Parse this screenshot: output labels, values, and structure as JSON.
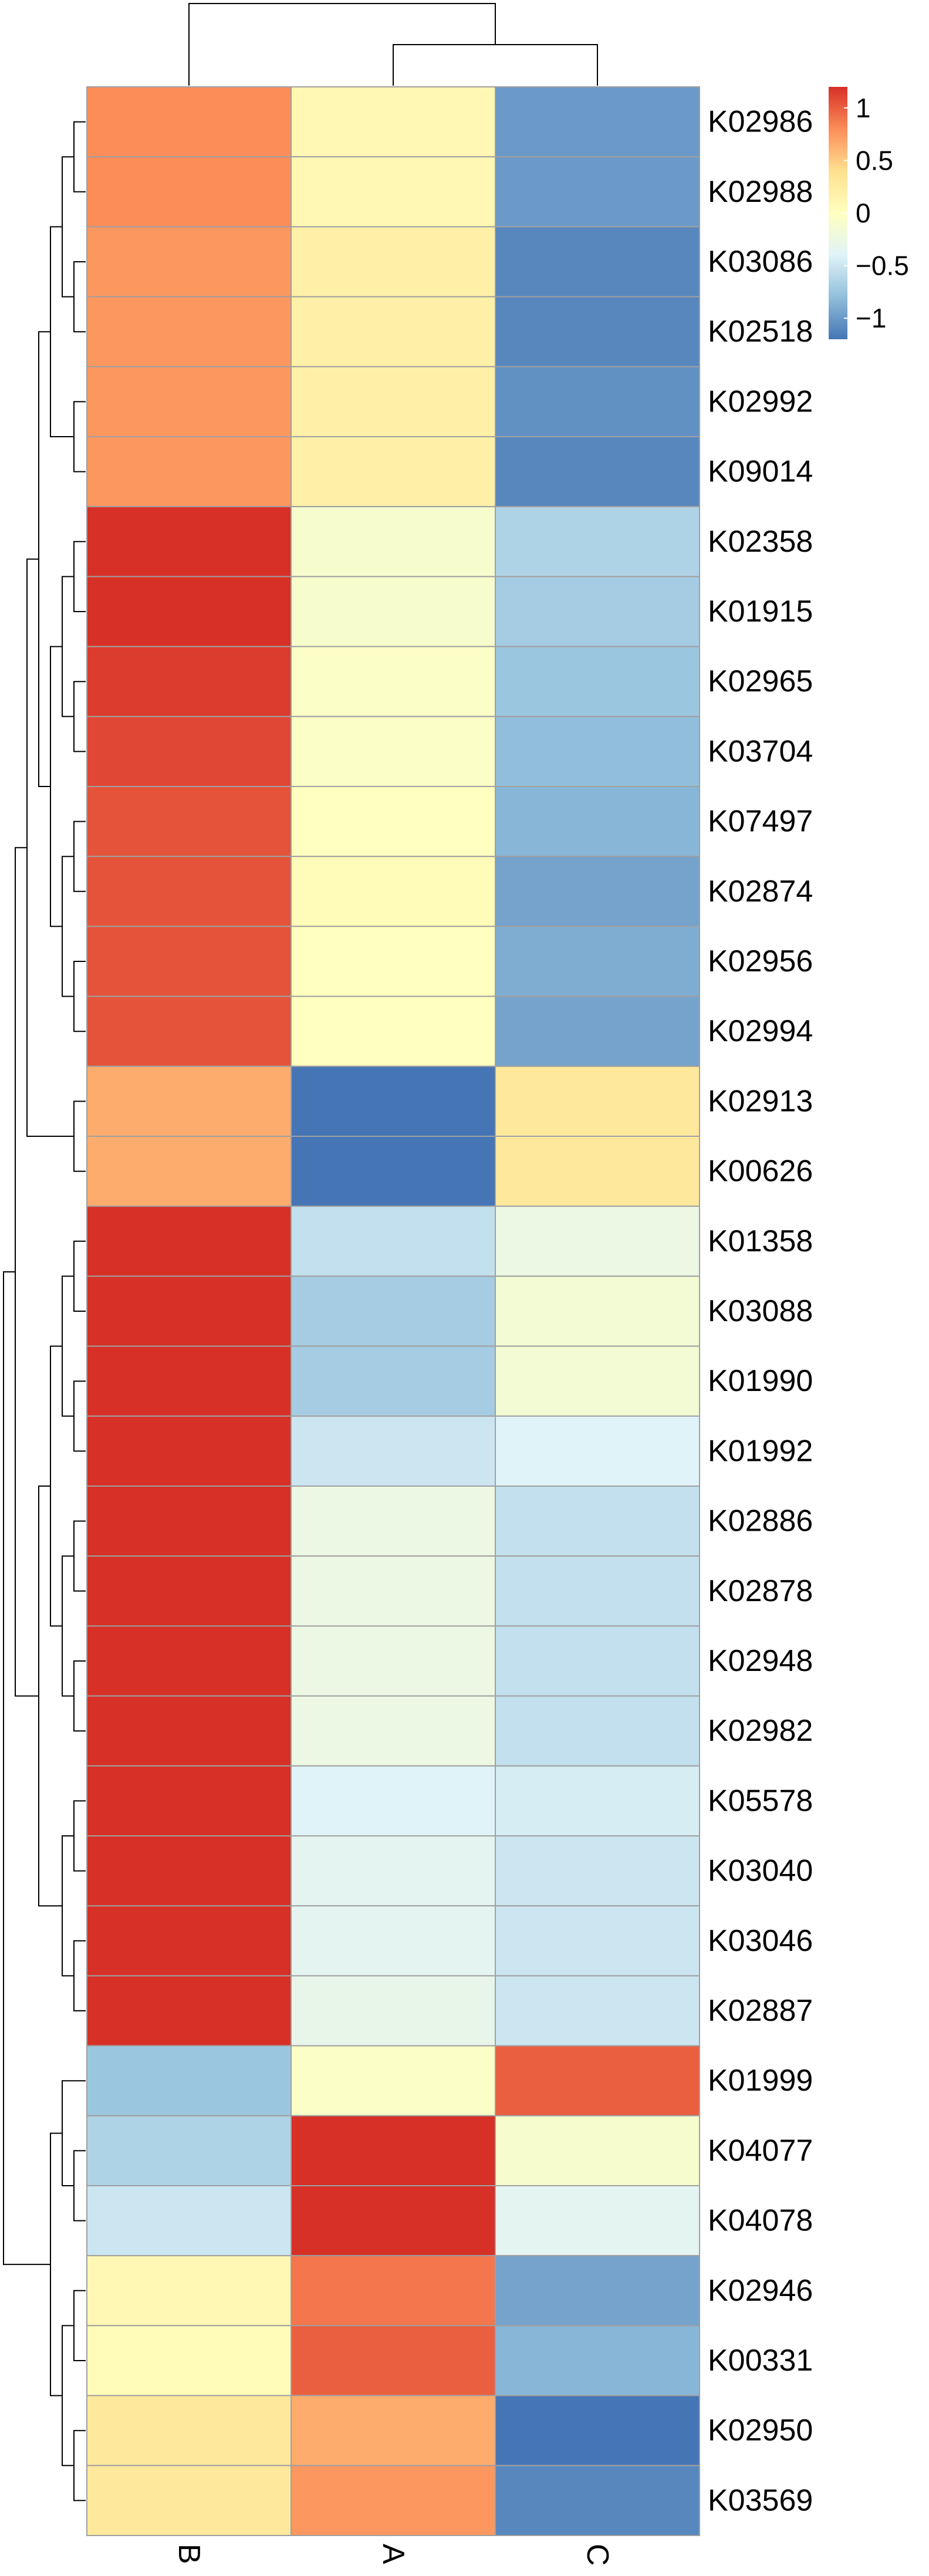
{
  "chart_data": {
    "type": "heatmap",
    "title": "",
    "columns": [
      "B",
      "A",
      "C"
    ],
    "rows": [
      "K02986",
      "K02988",
      "K03086",
      "K02518",
      "K02992",
      "K09014",
      "K02358",
      "K01915",
      "K02965",
      "K03704",
      "K07497",
      "K02874",
      "K02956",
      "K02994",
      "K02913",
      "K00626",
      "K01358",
      "K03088",
      "K01990",
      "K01992",
      "K02886",
      "K02878",
      "K02948",
      "K02982",
      "K05578",
      "K03040",
      "K03046",
      "K02887",
      "K01999",
      "K04077",
      "K04078",
      "K02946",
      "K00331",
      "K02950",
      "K03569"
    ],
    "values": [
      [
        0.8,
        0.1,
        -1.0
      ],
      [
        0.8,
        0.1,
        -1.0
      ],
      [
        0.75,
        0.2,
        -1.1
      ],
      [
        0.75,
        0.2,
        -1.1
      ],
      [
        0.75,
        0.2,
        -1.05
      ],
      [
        0.75,
        0.2,
        -1.1
      ],
      [
        1.2,
        -0.1,
        -0.65
      ],
      [
        1.2,
        -0.1,
        -0.7
      ],
      [
        1.15,
        -0.05,
        -0.75
      ],
      [
        1.1,
        -0.05,
        -0.8
      ],
      [
        1.05,
        0.0,
        -0.85
      ],
      [
        1.05,
        0.05,
        -0.95
      ],
      [
        1.05,
        0.0,
        -0.9
      ],
      [
        1.05,
        0.0,
        -0.95
      ],
      [
        0.65,
        -1.2,
        0.3
      ],
      [
        0.65,
        -1.2,
        0.3
      ],
      [
        1.3,
        -0.55,
        -0.25
      ],
      [
        1.3,
        -0.7,
        -0.15
      ],
      [
        1.3,
        -0.7,
        -0.15
      ],
      [
        1.3,
        -0.5,
        -0.4
      ],
      [
        1.3,
        -0.25,
        -0.55
      ],
      [
        1.3,
        -0.25,
        -0.55
      ],
      [
        1.3,
        -0.25,
        -0.55
      ],
      [
        1.3,
        -0.25,
        -0.55
      ],
      [
        1.3,
        -0.4,
        -0.45
      ],
      [
        1.3,
        -0.35,
        -0.5
      ],
      [
        1.3,
        -0.35,
        -0.5
      ],
      [
        1.3,
        -0.3,
        -0.5
      ],
      [
        -0.75,
        -0.05,
        1.0
      ],
      [
        -0.65,
        1.2,
        -0.1
      ],
      [
        -0.5,
        1.3,
        -0.35
      ],
      [
        0.1,
        0.9,
        -0.95
      ],
      [
        0.05,
        1.0,
        -0.85
      ],
      [
        0.3,
        0.65,
        -1.2
      ],
      [
        0.3,
        0.75,
        -1.1
      ]
    ],
    "scale": {
      "min": -1.2,
      "max": 1.2,
      "stops": [
        "#4575b4",
        "#91bfdb",
        "#e0f3f8",
        "#ffffbf",
        "#fee090",
        "#fc8d59",
        "#d73027"
      ]
    },
    "legend": {
      "position": "top-right",
      "ticks": [
        {
          "value": 1,
          "label": "1"
        },
        {
          "value": 0.5,
          "label": "0.5"
        },
        {
          "value": 0,
          "label": "0"
        },
        {
          "value": -0.5,
          "label": "−0.5"
        },
        {
          "value": -1,
          "label": "−1"
        }
      ]
    },
    "row_dendrogram": "(((((((0,1),(2,3)),(4,5)),(((6,7),(8,9)),((10,11),(12,13)))),(14,15)),((((16,17),(18,19)),((20,21),(22,23))),((24,25),(26,27)))),((28,(29,30)),((31,32),(33,34))))",
    "column_dendrogram": "(0,(1,2))"
  }
}
